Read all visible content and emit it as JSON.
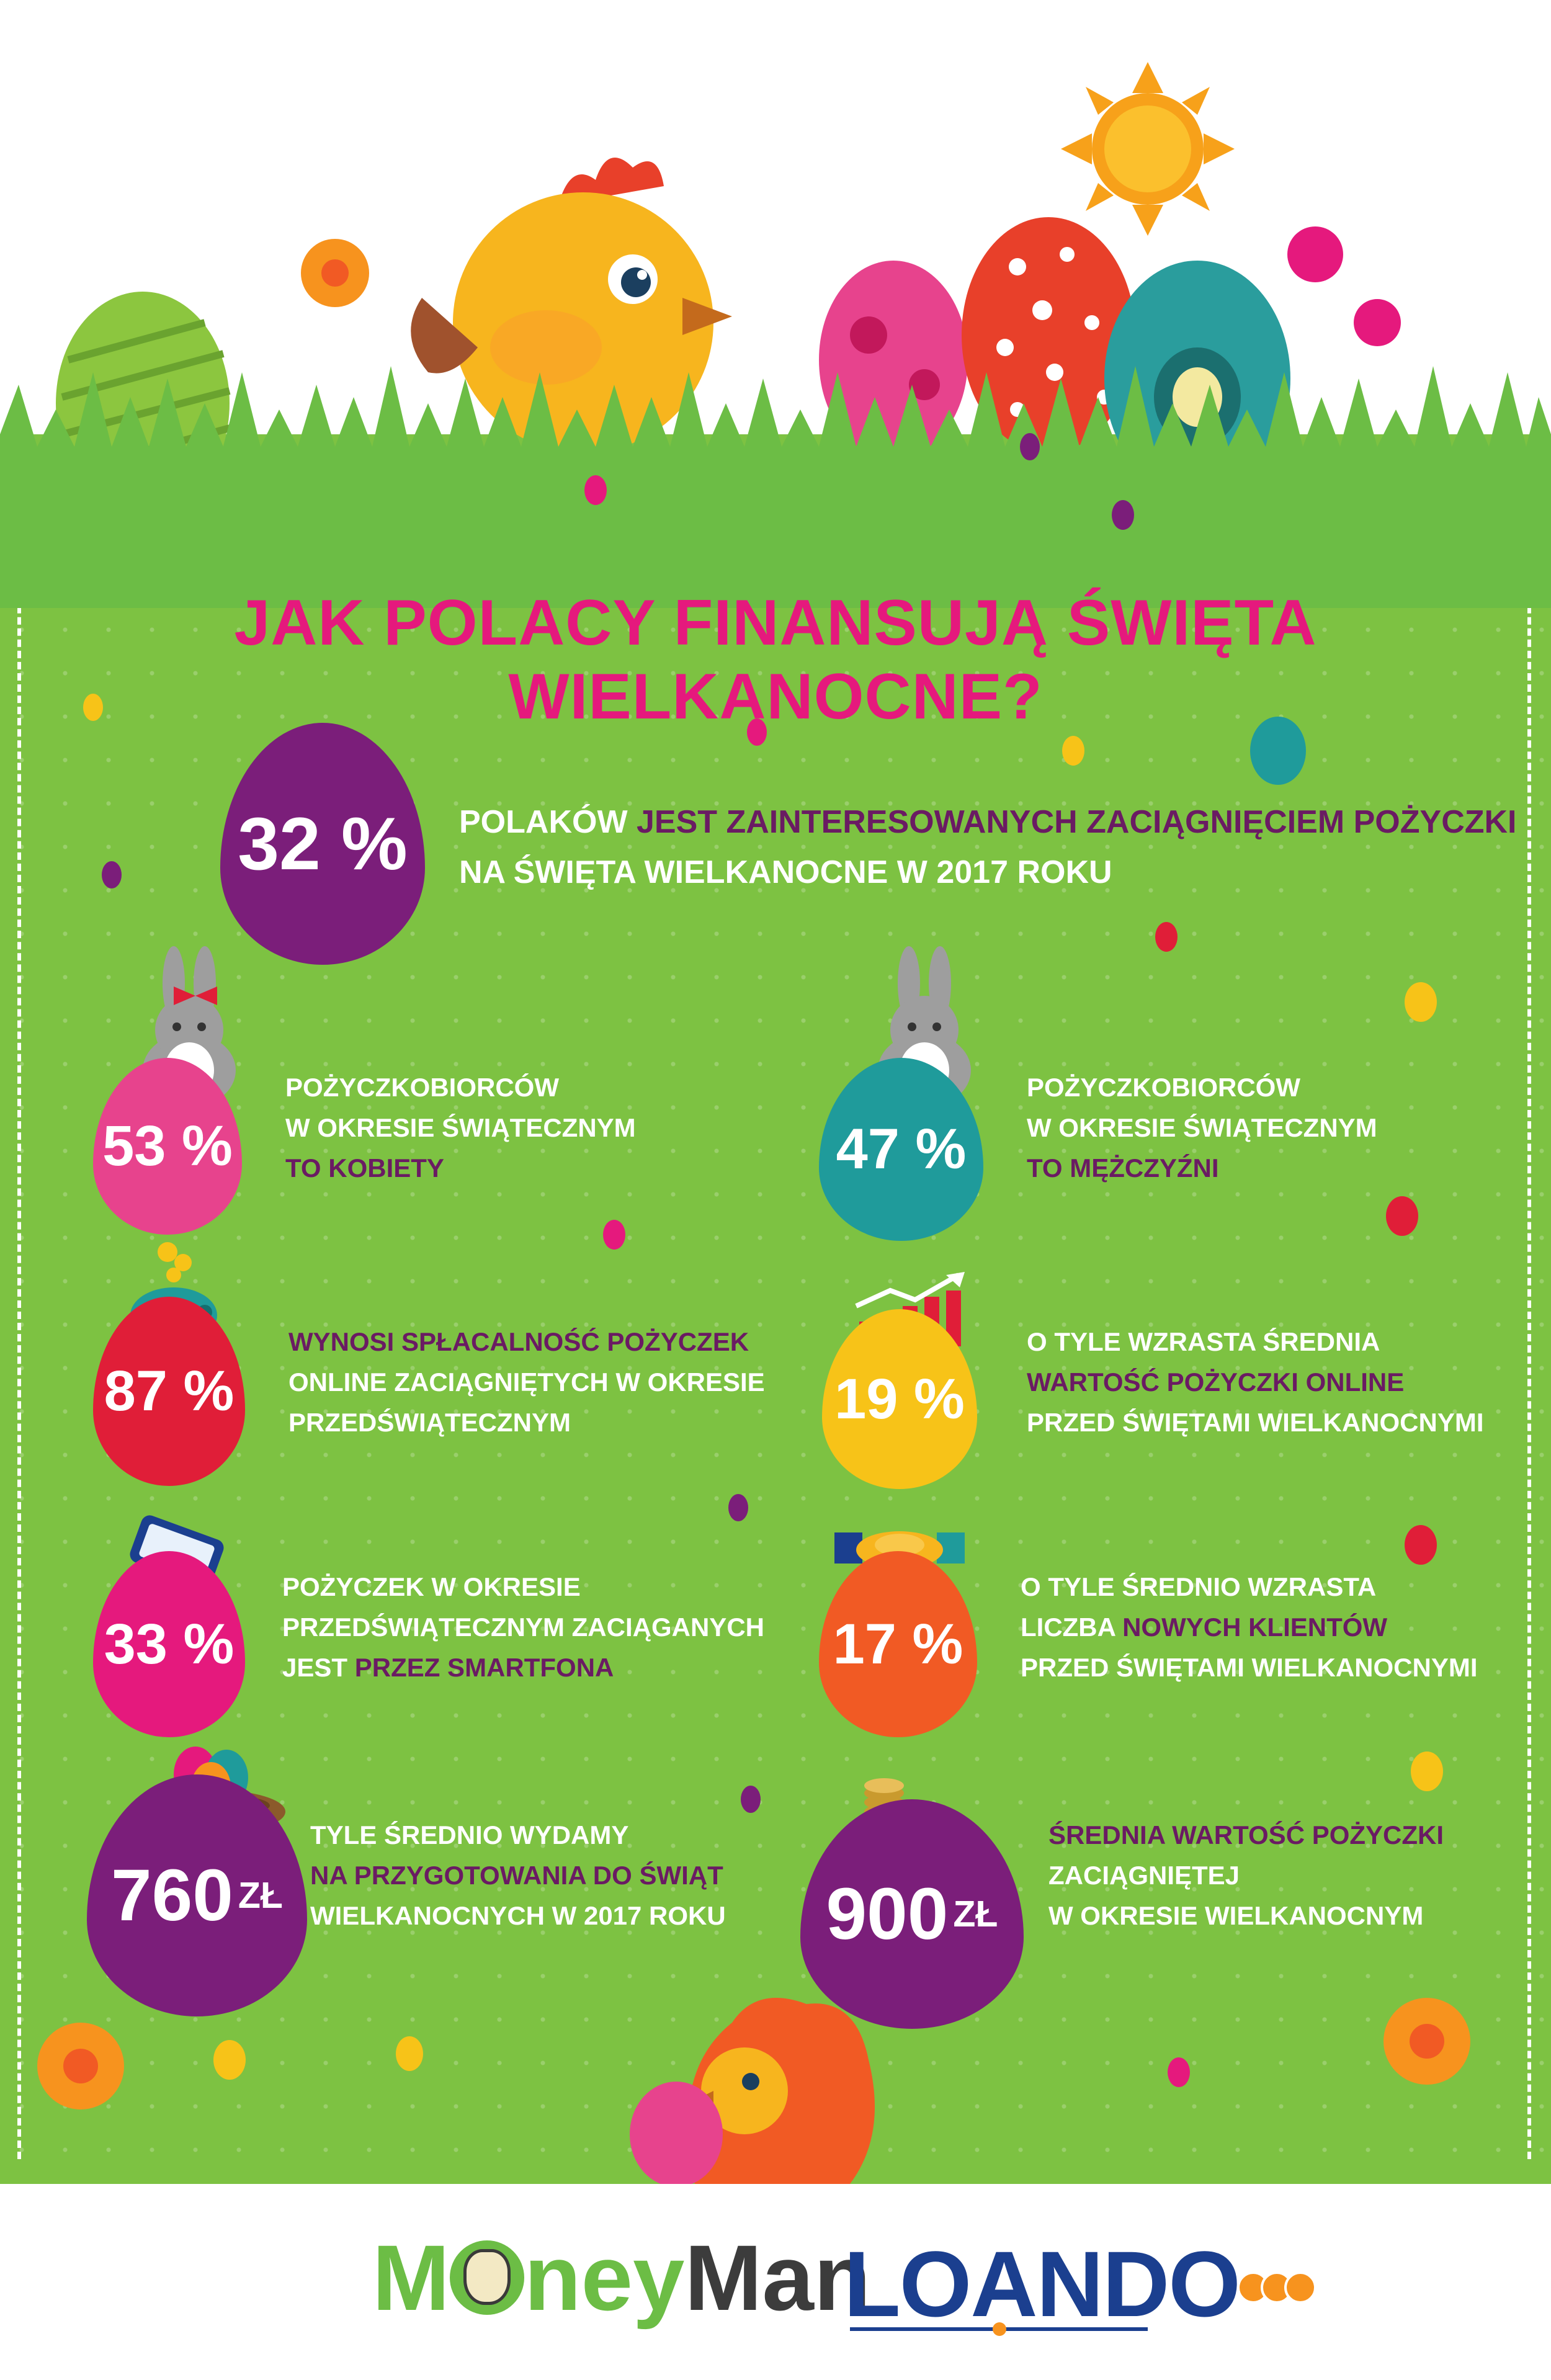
{
  "title": "JAK POLACY FINANSUJĄ ŚWIĘTA WIELKANOCNE?",
  "colors": {
    "background_green": "#7dc242",
    "title_pink": "#e5197d",
    "highlight_purple": "#6a1b63",
    "egg_purple": "#7b1e7a",
    "egg_pink": "#e7438d",
    "egg_teal": "#1f9b9b",
    "egg_red": "#e01e38",
    "egg_yellow": "#f7c318",
    "egg_magenta": "#e5197d",
    "egg_orange": "#f15a24"
  },
  "stats": [
    {
      "id": "interest",
      "value": "32 %",
      "color": "egg_purple",
      "segments": [
        {
          "text": "POLAKÓW ",
          "hl": false
        },
        {
          "text": "JEST ZAINTERESOWANYCH ZACIĄGNIĘCIEM POŻYCZKI",
          "hl": true
        }
      ],
      "line2": "NA ŚWIĘTA WIELKANOCNE W 2017 ROKU"
    },
    {
      "id": "women",
      "value": "53 %",
      "color": "egg_pink",
      "icon": "bunny-girl-icon",
      "lines": [
        "POŻYCZKOBIORCÓW",
        "W OKRESIE ŚWIĄTECZNYM"
      ],
      "last_line": "TO KOBIETY"
    },
    {
      "id": "men",
      "value": "47 %",
      "color": "egg_teal",
      "icon": "bunny-boy-icon",
      "lines": [
        "POŻYCZKOBIORCÓW",
        "W OKRESIE ŚWIĄTECZNYM"
      ],
      "last_line": "TO MĘŻCZYŹNI"
    },
    {
      "id": "repayment",
      "value": "87 %",
      "color": "egg_red",
      "icon": "piggy-bank-icon",
      "first_line": "WYNOSI SPŁACALNOŚĆ POŻYCZEK",
      "lines": [
        "ONLINE ZACIĄGNIĘTYCH W OKRESIE",
        "PRZEDŚWIĄTECZNYM"
      ]
    },
    {
      "id": "growth",
      "value": "19 %",
      "color": "egg_yellow",
      "icon": "growth-chart-icon",
      "line1": "O TYLE WZRASTA ŚREDNIA",
      "line2": "WARTOŚĆ POŻYCZKI ONLINE",
      "line3": "PRZED ŚWIĘTAMI WIELKANOCNYMI"
    },
    {
      "id": "smartphone",
      "value": "33 %",
      "color": "egg_magenta",
      "icon": "smartphone-icon",
      "line1": "POŻYCZEK W OKRESIE",
      "line2": "PRZEDŚWIĄTECZNYM ZACIĄGANYCH",
      "line3_plain": "JEST ",
      "line3_hl": "PRZEZ SMARTFONA"
    },
    {
      "id": "clients",
      "value": "17 %",
      "color": "egg_orange",
      "icon": "handshake-icon",
      "line1": "O TYLE ŚREDNIO WZRASTA",
      "line2_plain": "LICZBA ",
      "line2_hl": "NOWYCH KLIENTÓW",
      "line3": "PRZED ŚWIĘTAMI WIELKANOCNYMI"
    },
    {
      "id": "spend",
      "value": "760",
      "unit": "ZŁ",
      "color": "egg_purple",
      "icon": "nest-eggs-icon",
      "line1": "TYLE ŚREDNIO WYDAMY",
      "line2": "NA PRZYGOTOWANIA DO ŚWIĄT",
      "line3": "WIELKANOCNYCH W 2017 ROKU"
    },
    {
      "id": "loan_value",
      "value": "900",
      "unit": "ZŁ",
      "color": "egg_purple",
      "icon": "coins-icon",
      "line1": "ŚREDNIA WARTOŚĆ POŻYCZKI",
      "line2": "ZACIĄGNIĘTEJ",
      "line3": "W OKRESIE WIELKANOCNYM"
    }
  ],
  "footer": {
    "logo1_m": "M",
    "logo1_ney": "ney",
    "logo1_man": "Man",
    "logo2": "LOANDO"
  }
}
